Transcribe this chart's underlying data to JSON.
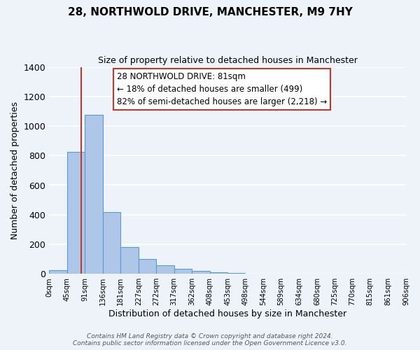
{
  "title": "28, NORTHWOLD DRIVE, MANCHESTER, M9 7HY",
  "subtitle": "Size of property relative to detached houses in Manchester",
  "xlabel": "Distribution of detached houses by size in Manchester",
  "ylabel": "Number of detached properties",
  "bin_edges": [
    0,
    45,
    91,
    136,
    181,
    227,
    272,
    317,
    362,
    408,
    453,
    498,
    544,
    589,
    634,
    680,
    725,
    770,
    815,
    861,
    906
  ],
  "bar_heights": [
    25,
    825,
    1075,
    420,
    180,
    100,
    57,
    35,
    20,
    10,
    5,
    3,
    0,
    0,
    0,
    0,
    0,
    0,
    0,
    0
  ],
  "bar_color": "#aec6e8",
  "bar_edge_color": "#5b9bd5",
  "bg_color": "#eef2f9",
  "grid_color": "#ffffff",
  "vline_x": 81,
  "vline_color": "#c0392b",
  "annotation_line1": "28 NORTHWOLD DRIVE: 81sqm",
  "annotation_line2": "← 18% of detached houses are smaller (499)",
  "annotation_line3": "82% of semi-detached houses are larger (2,218) →",
  "annotation_box_color": "#ffffff",
  "annotation_box_edge": "#c0392b",
  "footer_line1": "Contains HM Land Registry data © Crown copyright and database right 2024.",
  "footer_line2": "Contains public sector information licensed under the Open Government Licence v3.0.",
  "ylim": [
    0,
    1400
  ],
  "tick_labels": [
    "0sqm",
    "45sqm",
    "91sqm",
    "136sqm",
    "181sqm",
    "227sqm",
    "272sqm",
    "317sqm",
    "362sqm",
    "408sqm",
    "453sqm",
    "498sqm",
    "544sqm",
    "589sqm",
    "634sqm",
    "680sqm",
    "725sqm",
    "770sqm",
    "815sqm",
    "861sqm",
    "906sqm"
  ]
}
